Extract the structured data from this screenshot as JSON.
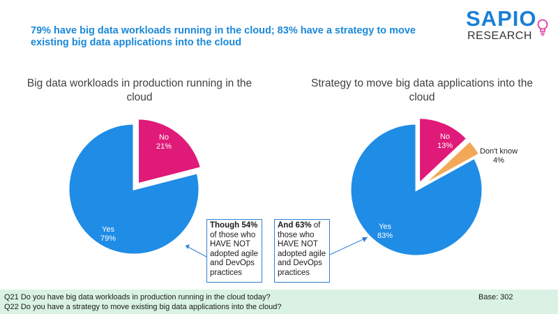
{
  "headline": "79% have big data workloads running in the cloud; 83% have a strategy to move existing big data applications into the cloud",
  "logo": {
    "brand": "SAPIO",
    "sub": "RESEARCH"
  },
  "colors": {
    "yes": "#1f8ce6",
    "no": "#e01a79",
    "dont_know": "#f2a857",
    "accent": "#2f7fd0"
  },
  "chart_data": [
    {
      "type": "pie",
      "title": "Big data workloads in production running in the cloud",
      "slices": [
        {
          "label": "No",
          "value": 21,
          "value_label": "21%",
          "color": "#e01a79",
          "exploded": true
        },
        {
          "label": "Yes",
          "value": 79,
          "value_label": "79%",
          "color": "#1f8ce6"
        }
      ]
    },
    {
      "type": "pie",
      "title": "Strategy to move big data applications into the cloud",
      "slices": [
        {
          "label": "No",
          "value": 13,
          "value_label": "13%",
          "color": "#e01a79",
          "exploded": true
        },
        {
          "label": "Don't know",
          "value": 4,
          "value_label": "4%",
          "color": "#f2a857",
          "exploded": true
        },
        {
          "label": "Yes",
          "value": 83,
          "value_label": "83%",
          "color": "#1f8ce6"
        }
      ]
    }
  ],
  "callouts": {
    "left": {
      "bold": "Though 54%",
      "rest": " of those who HAVE NOT adopted agile and DevOps practices"
    },
    "right": {
      "bold": "And 63%",
      "rest": " of those who HAVE NOT adopted agile and DevOps practices"
    }
  },
  "footer": {
    "q21": "Q21 Do you have big data workloads in production running in the cloud today?",
    "q22": "Q22 Do you have a strategy to move existing big data applications into the cloud?",
    "base": "Base: 302"
  }
}
